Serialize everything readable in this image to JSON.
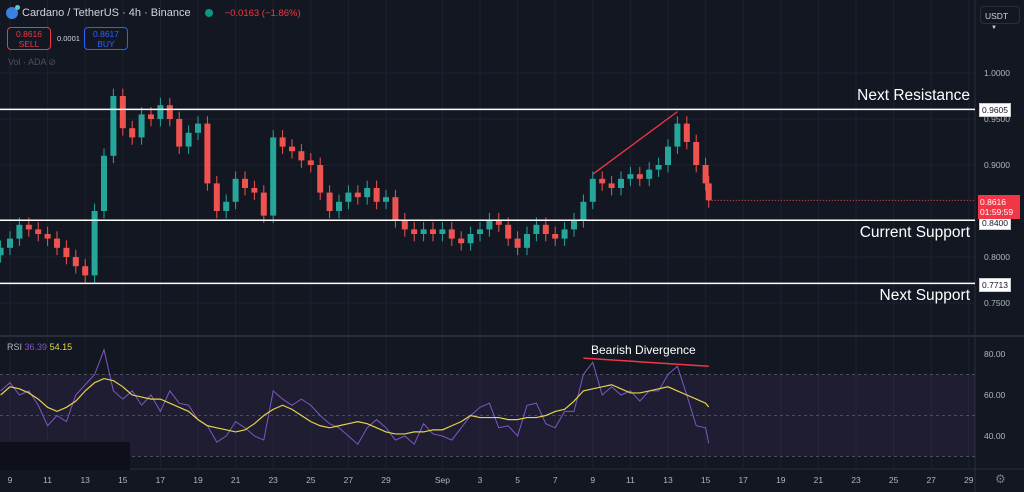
{
  "header": {
    "symbol": "Cardano / TetherUS · 4h · Binance",
    "change": "−0.0163 (−1.86%)",
    "sell_price": "0.8616",
    "sell_label": "SELL",
    "spread": "0.0001",
    "buy_price": "0.8617",
    "buy_label": "BUY",
    "volume_label": "Vol · ADA",
    "currency": "USDT"
  },
  "colors": {
    "background": "#131722",
    "up": "#26a69a",
    "down": "#ef5350",
    "rsi": "#7e57c2",
    "rsi_ma": "#e5d34a",
    "level_line": "#ffffff",
    "annotation": "#f23645"
  },
  "chart_data": [
    {
      "type": "candlestick",
      "timeframe": "4h",
      "ylim": [
        0.74,
        1.05
      ],
      "y_ticks": [
        "1.0000",
        "0.9500",
        "0.9000",
        "0.8000",
        "0.7500"
      ],
      "x_ticks": [
        [
          "9",
          "Aug 9"
        ],
        [
          "11",
          "Aug 11"
        ],
        [
          "13",
          "Aug 13"
        ],
        [
          "15",
          "Aug 15"
        ],
        [
          "17",
          "Aug 17"
        ],
        [
          "19",
          "Aug 19"
        ],
        [
          "21",
          "Aug 21"
        ],
        [
          "23",
          "Aug 23"
        ],
        [
          "25",
          "Aug 25"
        ],
        [
          "27",
          "Aug 27"
        ],
        [
          "29",
          "Aug 29"
        ],
        [
          "Sep",
          "Sep 1"
        ],
        [
          "3",
          "Sep 3"
        ],
        [
          "5",
          "Sep 5"
        ],
        [
          "7",
          "Sep 7"
        ],
        [
          "9",
          "Sep 9"
        ],
        [
          "11",
          "Sep 11"
        ],
        [
          "13",
          "Sep 13"
        ],
        [
          "15",
          "Sep 15"
        ],
        [
          "17",
          "Sep 17"
        ],
        [
          "19",
          "Sep 19"
        ],
        [
          "21",
          "Sep 21"
        ],
        [
          "23",
          "Sep 23"
        ],
        [
          "25",
          "Sep 25"
        ],
        [
          "27",
          "Sep 27"
        ],
        [
          "29",
          "Sep 29"
        ]
      ],
      "dates": [
        "Aug 8 12",
        "Aug 9 0",
        "Aug 9 12",
        "Aug 10 0",
        "Aug 10 12",
        "Aug 11 0",
        "Aug 11 12",
        "Aug 12 0",
        "Aug 12 12",
        "Aug 13 0",
        "Aug 13 12",
        "Aug 14 0",
        "Aug 14 12",
        "Aug 15 0",
        "Aug 15 12",
        "Aug 16 0",
        "Aug 16 12",
        "Aug 17 0",
        "Aug 17 12",
        "Aug 18 0",
        "Aug 18 12",
        "Aug 19 0",
        "Aug 19 12",
        "Aug 20 0",
        "Aug 20 12",
        "Aug 21 0",
        "Aug 21 12",
        "Aug 22 0",
        "Aug 22 12",
        "Aug 23 0",
        "Aug 23 12",
        "Aug 24 0",
        "Aug 24 12",
        "Aug 25 0",
        "Aug 25 12",
        "Aug 26 0",
        "Aug 26 12",
        "Aug 27 0",
        "Aug 27 12",
        "Aug 28 0",
        "Aug 28 12",
        "Aug 29 0",
        "Aug 29 12",
        "Aug 30 0",
        "Aug 30 12",
        "Aug 31 0",
        "Aug 31 12",
        "Sep 1 0",
        "Sep 1 12",
        "Sep 2 0",
        "Sep 2 12",
        "Sep 3 0",
        "Sep 3 12",
        "Sep 4 0",
        "Sep 4 12",
        "Sep 5 0",
        "Sep 5 12",
        "Sep 6 0",
        "Sep 6 12",
        "Sep 7 0",
        "Sep 7 12",
        "Sep 8 0",
        "Sep 8 12",
        "Sep 9 0",
        "Sep 9 12",
        "Sep 10 0",
        "Sep 10 12",
        "Sep 11 0",
        "Sep 11 12",
        "Sep 12 0",
        "Sep 12 12",
        "Sep 13 0",
        "Sep 13 12",
        "Sep 14 0",
        "Sep 14 12",
        "Sep 15 0",
        "Sep 15 4"
      ],
      "close": [
        0.81,
        0.82,
        0.835,
        0.83,
        0.825,
        0.82,
        0.81,
        0.8,
        0.79,
        0.78,
        0.85,
        0.91,
        0.975,
        0.94,
        0.93,
        0.955,
        0.95,
        0.965,
        0.95,
        0.92,
        0.935,
        0.945,
        0.88,
        0.85,
        0.86,
        0.885,
        0.875,
        0.87,
        0.845,
        0.93,
        0.92,
        0.915,
        0.905,
        0.9,
        0.87,
        0.85,
        0.86,
        0.87,
        0.865,
        0.875,
        0.86,
        0.865,
        0.84,
        0.83,
        0.825,
        0.83,
        0.825,
        0.83,
        0.82,
        0.815,
        0.825,
        0.83,
        0.84,
        0.835,
        0.82,
        0.81,
        0.825,
        0.835,
        0.825,
        0.82,
        0.83,
        0.84,
        0.86,
        0.885,
        0.88,
        0.875,
        0.885,
        0.89,
        0.885,
        0.895,
        0.9,
        0.92,
        0.945,
        0.925,
        0.9,
        0.88,
        0.8616
      ],
      "last_price": "0.8616",
      "countdown": "01:59:59",
      "levels": [
        {
          "value": "0.9605",
          "label": "Next Resistance"
        },
        {
          "value": "0.8400",
          "label": "Current Support"
        },
        {
          "value": "0.7713",
          "label": "Next Support"
        }
      ],
      "trendline": {
        "from": [
          "Sep 9 0",
          0.89
        ],
        "to": [
          "Sep 13 12",
          0.958
        ]
      }
    },
    {
      "type": "line",
      "title": "RSI",
      "value": "36.39",
      "ma_value": "54.15",
      "ylim": [
        25,
        90
      ],
      "y_ticks": [
        "80.00",
        "60.00",
        "40.00"
      ],
      "bands": [
        30,
        50,
        70
      ],
      "rsi": [
        62,
        66,
        60,
        62,
        55,
        45,
        50,
        47,
        60,
        65,
        70,
        82,
        62,
        58,
        62,
        55,
        60,
        52,
        62,
        56,
        55,
        48,
        45,
        37,
        40,
        47,
        44,
        40,
        38,
        62,
        58,
        55,
        58,
        55,
        50,
        46,
        44,
        40,
        36,
        44,
        48,
        44,
        38,
        40,
        36,
        46,
        41,
        40,
        38,
        44,
        50,
        54,
        56,
        44,
        45,
        40,
        55,
        56,
        46,
        44,
        52,
        52,
        70,
        76,
        60,
        64,
        60,
        62,
        57,
        62,
        62,
        70,
        74,
        60,
        45,
        44,
        36.39
      ],
      "ma": [
        60,
        64,
        63,
        61,
        58,
        54,
        52,
        54,
        57,
        62,
        66,
        68,
        67,
        64,
        60,
        59,
        58,
        58,
        56,
        54,
        52,
        48,
        45,
        44,
        43,
        42,
        43,
        46,
        50,
        53,
        55,
        53,
        50,
        47,
        45,
        44,
        45,
        46,
        47,
        46,
        44,
        42,
        41,
        41,
        42,
        42,
        43,
        43,
        45,
        47,
        50,
        49,
        49,
        49,
        48,
        48,
        49,
        49,
        50,
        52,
        53,
        57,
        62,
        63,
        64,
        65,
        63,
        61,
        61,
        62,
        63,
        64,
        62,
        60,
        58,
        56,
        54.15
      ],
      "annotation": {
        "text": "Bearish Divergence",
        "from": [
          "Sep 8 12",
          78
        ],
        "to": [
          "Sep 15 4",
          74
        ]
      }
    }
  ]
}
